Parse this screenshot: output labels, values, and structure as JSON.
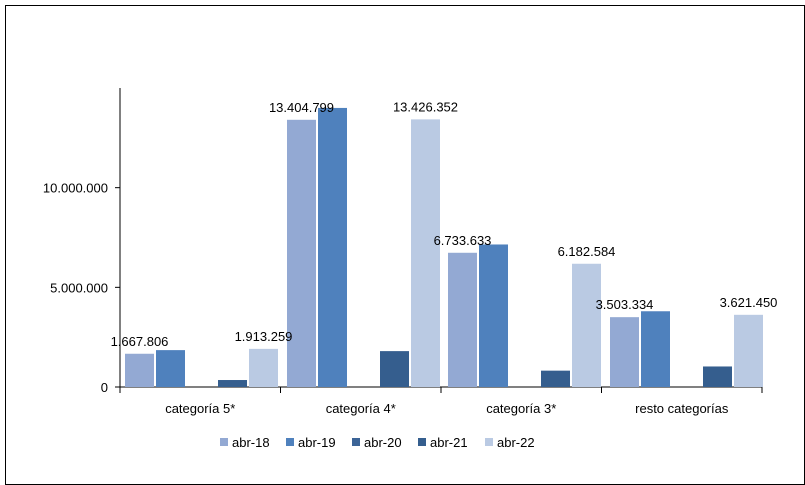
{
  "chart_data": {
    "type": "bar",
    "categories": [
      "categoría 5*",
      "categoría 4*",
      "categoría 3*",
      "resto categorías"
    ],
    "series": [
      {
        "name": "abr-18",
        "color": "#93A9D3",
        "values": [
          1667806,
          13404799,
          6733633,
          3503334
        ]
      },
      {
        "name": "abr-19",
        "color": "#4F81BD",
        "values": [
          1850000,
          14000000,
          7150000,
          3800000
        ]
      },
      {
        "name": "abr-20",
        "color": "#3C6497",
        "values": [
          0,
          0,
          0,
          0
        ]
      },
      {
        "name": "abr-21",
        "color": "#355E8E",
        "values": [
          350000,
          1800000,
          820000,
          1030000
        ]
      },
      {
        "name": "abr-22",
        "color": "#BACAE3",
        "values": [
          1913259,
          13426352,
          6182584,
          3621450
        ]
      }
    ],
    "data_labels": [
      {
        "series": 0,
        "category": 0,
        "text": "1.667.806"
      },
      {
        "series": 0,
        "category": 1,
        "text": "13.404.799"
      },
      {
        "series": 0,
        "category": 2,
        "text": "6.733.633"
      },
      {
        "series": 0,
        "category": 3,
        "text": "3.503.334"
      },
      {
        "series": 4,
        "category": 0,
        "text": "1.913.259"
      },
      {
        "series": 4,
        "category": 1,
        "text": "13.426.352"
      },
      {
        "series": 4,
        "category": 2,
        "text": "6.182.584"
      },
      {
        "series": 4,
        "category": 3,
        "text": "3.621.450"
      }
    ],
    "y_ticks": [
      {
        "value": 0,
        "label": "0"
      },
      {
        "value": 5000000,
        "label": "5.000.000"
      },
      {
        "value": 10000000,
        "label": "10.000.000"
      }
    ],
    "ylim": [
      0,
      15000000
    ],
    "legend_position": "bottom",
    "grid": false
  }
}
